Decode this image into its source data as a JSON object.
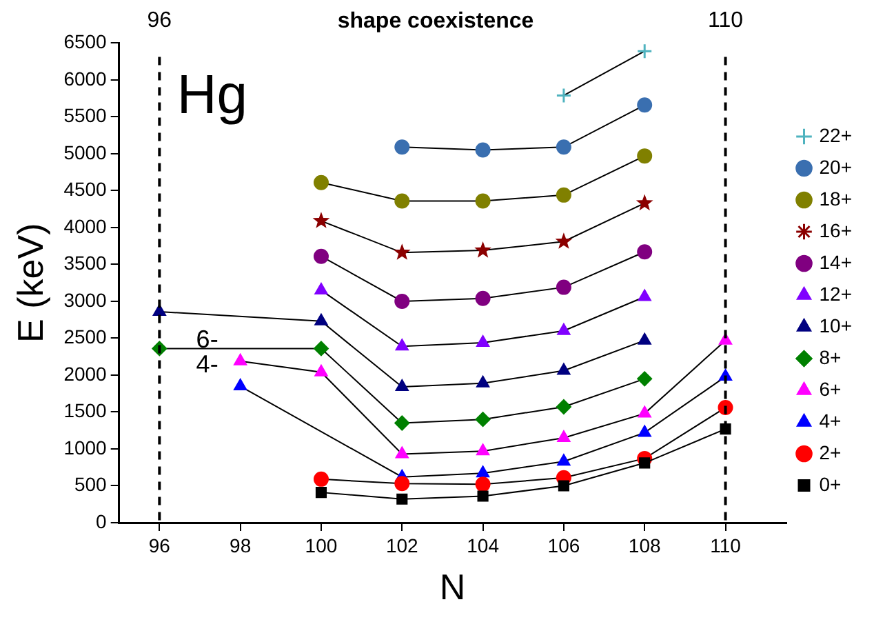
{
  "chart_data": {
    "type": "line",
    "title": "shape coexistence",
    "xlabel": "N",
    "ylabel": "E (keV)",
    "xlim": [
      95,
      111.5
    ],
    "xticks": [
      96,
      98,
      100,
      102,
      104,
      106,
      108,
      110
    ],
    "ylim": [
      0,
      6500
    ],
    "yticks": [
      0,
      500,
      1000,
      1500,
      2000,
      2500,
      3000,
      3500,
      4000,
      4500,
      5000,
      5500,
      6000,
      6500
    ],
    "grid": false,
    "legend": "right",
    "series": [
      {
        "name": "22+",
        "color": "#4fb3bf",
        "marker": "cross",
        "x": [
          106,
          108
        ],
        "values": [
          5790,
          6390
        ]
      },
      {
        "name": "20+",
        "color": "#3a6fb0",
        "marker": "circle",
        "x": [
          102,
          104,
          106,
          108
        ],
        "values": [
          5090,
          5050,
          5090,
          5660
        ]
      },
      {
        "name": "18+",
        "color": "#808000",
        "marker": "circle",
        "x": [
          100,
          102,
          104,
          106,
          108
        ],
        "values": [
          4610,
          4360,
          4360,
          4440,
          4970
        ]
      },
      {
        "name": "16+",
        "color": "#8b0000",
        "marker": "star",
        "x": [
          100,
          102,
          104,
          106,
          108
        ],
        "values": [
          4090,
          3660,
          3690,
          3810,
          4330
        ]
      },
      {
        "name": "14+",
        "color": "#800080",
        "marker": "circle",
        "x": [
          100,
          102,
          104,
          106,
          108
        ],
        "values": [
          3610,
          3000,
          3040,
          3190,
          3670
        ]
      },
      {
        "name": "12+",
        "color": "#8000ff",
        "marker": "triangle",
        "x": [
          100,
          102,
          104,
          106,
          108
        ],
        "values": [
          3150,
          2390,
          2440,
          2600,
          3060
        ]
      },
      {
        "name": "10+",
        "color": "#000080",
        "marker": "triangle",
        "x": [
          96,
          100,
          102,
          104,
          106,
          108
        ],
        "values": [
          2860,
          2730,
          1840,
          1890,
          2060,
          2470
        ]
      },
      {
        "name": "8+",
        "color": "#008000",
        "marker": "diamond",
        "x": [
          96,
          100,
          102,
          104,
          106,
          108
        ],
        "values": [
          2360,
          2360,
          1350,
          1400,
          1570,
          1950
        ]
      },
      {
        "name": "6+",
        "color": "#ff00ff",
        "marker": "triangle",
        "x": [
          98,
          100,
          102,
          104,
          106,
          108,
          110
        ],
        "values": [
          2190,
          2040,
          930,
          970,
          1150,
          1480,
          2470
        ]
      },
      {
        "name": "4+",
        "color": "#0000ff",
        "marker": "triangle",
        "x": [
          98,
          102,
          104,
          106,
          108,
          110
        ],
        "values": [
          1850,
          620,
          670,
          830,
          1220,
          1980
        ]
      },
      {
        "name": "2+",
        "color": "#ff0000",
        "marker": "circle",
        "x": [
          100,
          102,
          104,
          106,
          108,
          110
        ],
        "values": [
          590,
          530,
          520,
          610,
          870,
          1560
        ]
      },
      {
        "name": "0+",
        "color": "#000000",
        "marker": "square",
        "x": [
          100,
          102,
          104,
          106,
          108,
          110
        ],
        "values": [
          410,
          320,
          360,
          500,
          810,
          1270
        ]
      }
    ],
    "ref_lines": [
      {
        "axis": "x",
        "value": 96,
        "label": "96",
        "line_style": "dashed",
        "color": "#000000"
      },
      {
        "axis": "x",
        "value": 110,
        "label": "110",
        "line_style": "dashed",
        "color": "#000000"
      }
    ],
    "annotations": [
      "Hg",
      {
        "text": "6-",
        "x": 98,
        "y": 2190
      },
      {
        "text": "4-",
        "x": 98,
        "y": 1850
      }
    ]
  }
}
